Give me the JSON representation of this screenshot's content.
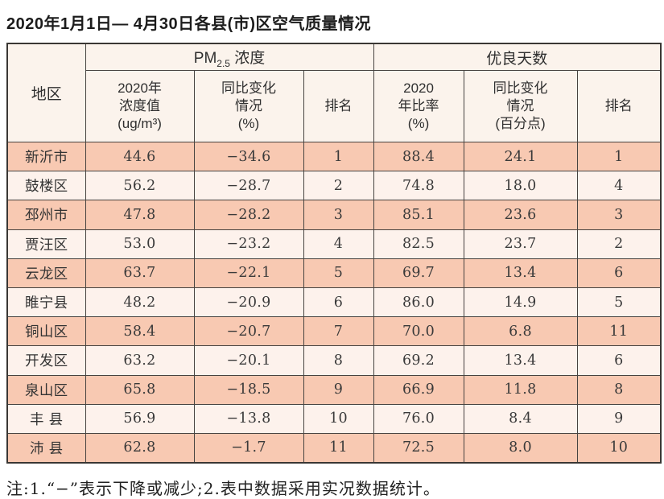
{
  "title": "2020年1月1日— 4月30日各县(市)区空气质量情况",
  "table": {
    "header": {
      "region": "地区",
      "pm25_group": {
        "text": "PM",
        "sub": "2.5",
        "tail": " 浓度"
      },
      "good_days_group": "优良天数",
      "pm25_value": {
        "line1": "2020年",
        "line2": "浓度值",
        "line3": "(ug/m³)"
      },
      "pm25_change": {
        "line1": "同比变化",
        "line2": "情况",
        "line3": "(%)"
      },
      "pm25_rank": "排名",
      "ratio": {
        "line1": "2020",
        "line2": "年比率",
        "line3": "(%)"
      },
      "ratio_change": {
        "line1": "同比变化",
        "line2": "情况",
        "line3": "(百分点)"
      },
      "days_rank": "排名"
    },
    "rows": [
      [
        "新沂市",
        "44.6",
        "−34.6",
        "1",
        "88.4",
        "24.1",
        "1"
      ],
      [
        "鼓楼区",
        "56.2",
        "−28.7",
        "2",
        "74.8",
        "18.0",
        "4"
      ],
      [
        "邳州市",
        "47.8",
        "−28.2",
        "3",
        "85.1",
        "23.6",
        "3"
      ],
      [
        "贾汪区",
        "53.0",
        "−23.2",
        "4",
        "82.5",
        "23.7",
        "2"
      ],
      [
        "云龙区",
        "63.7",
        "−22.1",
        "5",
        "69.7",
        "13.4",
        "6"
      ],
      [
        "睢宁县",
        "48.2",
        "−20.9",
        "6",
        "86.0",
        "14.9",
        "5"
      ],
      [
        "铜山区",
        "58.4",
        "−20.7",
        "7",
        "70.0",
        "6.8",
        "11"
      ],
      [
        "开发区",
        "63.2",
        "−20.1",
        "8",
        "69.2",
        "13.4",
        "6"
      ],
      [
        "泉山区",
        "65.8",
        "−18.5",
        "9",
        "66.9",
        "11.8",
        "8"
      ],
      [
        "丰 县",
        "56.9",
        "−13.8",
        "10",
        "76.0",
        "8.4",
        "9"
      ],
      [
        "沛 县",
        "62.8",
        "−1.7",
        "11",
        "72.5",
        "8.0",
        "10"
      ]
    ]
  },
  "note": "注:1.“−”表示下降或减少;2.表中数据采用实况数据统计。",
  "colors": {
    "row_peach": "#f8c9b2",
    "row_light": "#fdf2ec",
    "header_bg": "#fbf3ec",
    "grid": "#474340"
  },
  "chart_data": {
    "type": "table",
    "title": "2020年1月1日— 4月30日各县(市)区空气质量情况",
    "columns": [
      "地区",
      "PM2.5浓度 2020年浓度值(ug/m³)",
      "PM2.5浓度 同比变化情况(%)",
      "PM2.5浓度 排名",
      "优良天数 2020年比率(%)",
      "优良天数 同比变化情况(百分点)",
      "优良天数 排名"
    ],
    "rows": [
      [
        "新沂市",
        44.6,
        -34.6,
        1,
        88.4,
        24.1,
        1
      ],
      [
        "鼓楼区",
        56.2,
        -28.7,
        2,
        74.8,
        18.0,
        4
      ],
      [
        "邳州市",
        47.8,
        -28.2,
        3,
        85.1,
        23.6,
        3
      ],
      [
        "贾汪区",
        53.0,
        -23.2,
        4,
        82.5,
        23.7,
        2
      ],
      [
        "云龙区",
        63.7,
        -22.1,
        5,
        69.7,
        13.4,
        6
      ],
      [
        "睢宁县",
        48.2,
        -20.9,
        6,
        86.0,
        14.9,
        5
      ],
      [
        "铜山区",
        58.4,
        -20.7,
        7,
        70.0,
        6.8,
        11
      ],
      [
        "开发区",
        63.2,
        -20.1,
        8,
        69.2,
        13.4,
        6
      ],
      [
        "泉山区",
        65.8,
        -18.5,
        9,
        66.9,
        11.8,
        8
      ],
      [
        "丰县",
        56.9,
        -13.8,
        10,
        76.0,
        8.4,
        9
      ],
      [
        "沛县",
        62.8,
        -1.7,
        11,
        72.5,
        8.0,
        10
      ]
    ]
  }
}
